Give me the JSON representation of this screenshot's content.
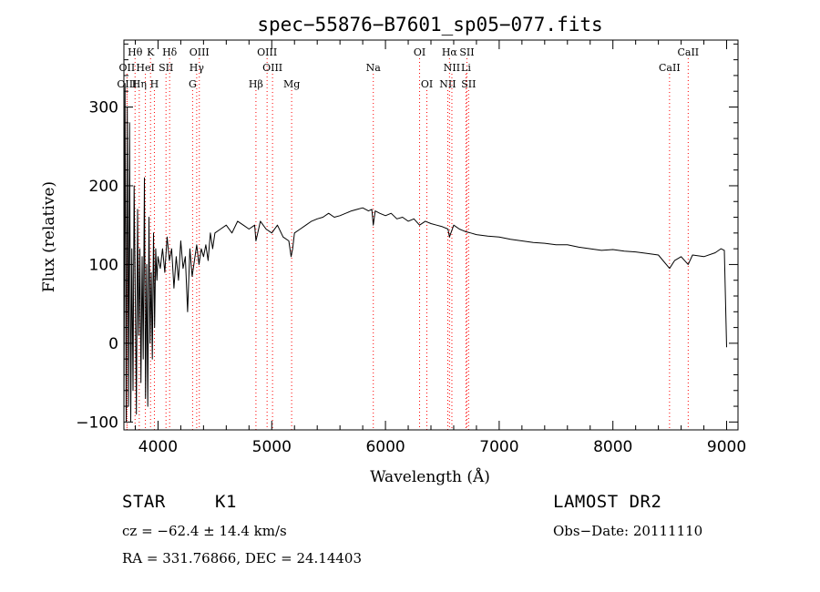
{
  "chart_data": {
    "type": "line",
    "title": "spec−55876−B7601_sp05−077.fits",
    "xlabel": "Wavelength (Å)",
    "ylabel": "Flux (relative)",
    "xlim": [
      3700,
      9100
    ],
    "ylim": [
      -110,
      385
    ],
    "x_ticks": [
      4000,
      5000,
      6000,
      7000,
      8000,
      9000
    ],
    "y_ticks": [
      -100,
      0,
      100,
      200,
      300
    ],
    "grid": false,
    "line_color": "#000000",
    "marker_color": "#ff0000",
    "series": [
      {
        "x": [
          3700,
          3710,
          3720,
          3730,
          3740,
          3750,
          3760,
          3770,
          3780,
          3790,
          3800,
          3810,
          3820,
          3830,
          3840,
          3850,
          3860,
          3870,
          3880,
          3890,
          3900,
          3910,
          3920,
          3930,
          3940,
          3950,
          3960,
          3970,
          3980,
          3990,
          4000,
          4020,
          4040,
          4060,
          4080,
          4100,
          4120,
          4140,
          4160,
          4180,
          4200,
          4220,
          4240,
          4260,
          4280,
          4300,
          4320,
          4340,
          4360,
          4380,
          4400,
          4420,
          4440,
          4460,
          4480,
          4500,
          4550,
          4600,
          4650,
          4700,
          4750,
          4800,
          4850,
          4861,
          4900,
          4950,
          5000,
          5050,
          5100,
          5150,
          5170,
          5184,
          5200,
          5250,
          5300,
          5350,
          5400,
          5450,
          5500,
          5550,
          5600,
          5650,
          5700,
          5750,
          5800,
          5850,
          5880,
          5893,
          5910,
          5950,
          6000,
          6050,
          6100,
          6150,
          6200,
          6250,
          6300,
          6350,
          6400,
          6450,
          6500,
          6550,
          6563,
          6600,
          6650,
          6700,
          6750,
          6800,
          6900,
          7000,
          7100,
          7200,
          7300,
          7400,
          7500,
          7600,
          7700,
          7800,
          7900,
          8000,
          8100,
          8200,
          8300,
          8400,
          8498,
          8542,
          8600,
          8662,
          8700,
          8800,
          8900,
          8950,
          8980,
          9000
        ],
        "y": [
          -90,
          330,
          -100,
          300,
          -80,
          280,
          -100,
          120,
          -60,
          200,
          60,
          -90,
          170,
          10,
          120,
          -50,
          110,
          -20,
          210,
          -70,
          100,
          -80,
          160,
          0,
          90,
          -20,
          140,
          20,
          120,
          80,
          110,
          95,
          120,
          90,
          135,
          105,
          120,
          70,
          110,
          80,
          130,
          95,
          110,
          40,
          120,
          85,
          105,
          125,
          100,
          120,
          110,
          125,
          105,
          140,
          120,
          140,
          145,
          150,
          140,
          155,
          150,
          145,
          150,
          130,
          155,
          145,
          140,
          150,
          135,
          130,
          110,
          120,
          140,
          145,
          150,
          155,
          158,
          160,
          165,
          160,
          162,
          165,
          168,
          170,
          172,
          168,
          170,
          150,
          168,
          165,
          162,
          165,
          158,
          160,
          155,
          158,
          150,
          155,
          152,
          150,
          148,
          145,
          135,
          150,
          145,
          142,
          140,
          138,
          136,
          135,
          132,
          130,
          128,
          127,
          125,
          125,
          122,
          120,
          118,
          119,
          117,
          116,
          114,
          112,
          95,
          105,
          110,
          100,
          112,
          110,
          115,
          120,
          118,
          -5
        ]
      }
    ],
    "lines": [
      {
        "label": "Hθ",
        "wave": 3798,
        "row": 0
      },
      {
        "label": "K",
        "wave": 3934,
        "row": 0
      },
      {
        "label": "Hδ",
        "wave": 4102,
        "row": 0
      },
      {
        "label": "OIII",
        "wave": 4363,
        "row": 0
      },
      {
        "label": "OIII",
        "wave": 4959,
        "row": 0
      },
      {
        "label": "OI",
        "wave": 6300,
        "row": 0
      },
      {
        "label": "Hα",
        "wave": 6563,
        "row": 0
      },
      {
        "label": "SII",
        "wave": 6716,
        "row": 0
      },
      {
        "label": "CaII",
        "wave": 8662,
        "row": 0
      },
      {
        "label": "OII",
        "wave": 3727,
        "row": 1
      },
      {
        "label": "HeI",
        "wave": 3889,
        "row": 1
      },
      {
        "label": "SII",
        "wave": 4070,
        "row": 1
      },
      {
        "label": "Hγ",
        "wave": 4340,
        "row": 1
      },
      {
        "label": "OIII",
        "wave": 5007,
        "row": 1
      },
      {
        "label": "Na",
        "wave": 5893,
        "row": 1
      },
      {
        "label": "NII",
        "wave": 6584,
        "row": 1
      },
      {
        "label": "Li",
        "wave": 6708,
        "row": 1
      },
      {
        "label": "CaII",
        "wave": 8498,
        "row": 1
      },
      {
        "label": "OIII",
        "wave": 3727,
        "row": 2
      },
      {
        "label": "Hη",
        "wave": 3835,
        "row": 2
      },
      {
        "label": "H",
        "wave": 3968,
        "row": 2
      },
      {
        "label": "G",
        "wave": 4304,
        "row": 2
      },
      {
        "label": "Hβ",
        "wave": 4861,
        "row": 2
      },
      {
        "label": "Mg",
        "wave": 5175,
        "row": 2
      },
      {
        "label": "OI",
        "wave": 6364,
        "row": 2
      },
      {
        "label": "NII",
        "wave": 6548,
        "row": 2
      },
      {
        "label": "SII",
        "wave": 6731,
        "row": 2
      }
    ]
  },
  "info": {
    "object_type": "STAR",
    "subclass": "K1",
    "survey": "LAMOST DR2",
    "redshift": "cz = −62.4 ± 14.4 km/s",
    "obs_date": "Obs−Date: 20111110",
    "coords": "RA = 331.76866, DEC =  24.14403"
  }
}
